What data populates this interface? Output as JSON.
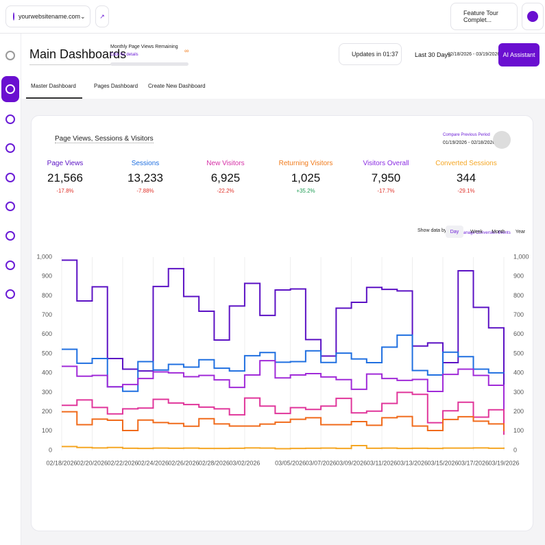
{
  "topbar": {
    "site": "yourwebsitename.com",
    "tour": "Feature Tour Complet..."
  },
  "header": {
    "title": "Main Dashboards",
    "quota_label": "Monthly Page Views Remaining",
    "quota_link": "Click for details",
    "quota_value": "∞",
    "updates": "Updates in 01:37",
    "range_name": "Last 30 Days",
    "range_dates": "02/18/2026 - 03/19/2026",
    "ai_button": "AI Assistant"
  },
  "tabs": [
    "Master Dashboard",
    "Pages Dashboard",
    "Create New Dashboard"
  ],
  "card": {
    "title": "Page Views, Sessions & Visitors",
    "compare_label": "Compare Previous Period",
    "compare_dates": "01/19/2026 - 02/18/2026",
    "conversion_link": "Manage Conversion Events",
    "show_by_label": "Show data by:",
    "show_by": [
      "Day",
      "Week",
      "Month",
      "Year"
    ]
  },
  "metrics": [
    {
      "name": "Page Views",
      "value": "21,566",
      "change": "-17.8%",
      "color": "#5b11c4",
      "change_color": "#e0332b"
    },
    {
      "name": "Sessions",
      "value": "13,233",
      "change": "-7.88%",
      "color": "#1f6fe0",
      "change_color": "#e0332b"
    },
    {
      "name": "New Visitors",
      "value": "6,925",
      "change": "-22.2%",
      "color": "#d62fa6",
      "change_color": "#e0332b"
    },
    {
      "name": "Returning Visitors",
      "value": "1,025",
      "change": "+35.2%",
      "color": "#f07a1a",
      "change_color": "#1f9d55"
    },
    {
      "name": "Visitors Overall",
      "value": "7,950",
      "change": "-17.7%",
      "color": "#8a2be2",
      "change_color": "#e0332b"
    },
    {
      "name": "Converted Sessions",
      "value": "344",
      "change": "-29.1%",
      "color": "#f5a623",
      "change_color": "#e0332b"
    }
  ],
  "chart_data": {
    "type": "line",
    "step": true,
    "grid": true,
    "categories": [
      "02/18/2026",
      null,
      "02/20/2026",
      null,
      "02/22/2026",
      null,
      "02/24/2026",
      null,
      "02/26/2026",
      null,
      "02/28/2026",
      null,
      "03/02/2026",
      null,
      null,
      "03/05/2026",
      null,
      "03/07/2026",
      null,
      "03/09/2026",
      null,
      "03/11/2026",
      null,
      "03/13/2026",
      null,
      "03/15/2026",
      null,
      "03/17/2026",
      null,
      "03/19/2026"
    ],
    "ylim": [
      0,
      1000
    ],
    "yticks": [
      0,
      100,
      200,
      300,
      400,
      500,
      600,
      700,
      800,
      900,
      {
        "value": 1000,
        "label": "1,000"
      }
    ],
    "y2lim": [
      0,
      1000
    ],
    "y2ticks": [
      0,
      100,
      200,
      300,
      400,
      500,
      600,
      700,
      800,
      900,
      {
        "value": 1000,
        "label": "1,000"
      }
    ],
    "series": [
      {
        "name": "Page Views",
        "color": "#5b11c4",
        "values": [
          984,
          773,
          846,
          475,
          420,
          411,
          848,
          940,
          796,
          720,
          571,
          747,
          864,
          698,
          830,
          835,
          573,
          488,
          736,
          766,
          843,
          833,
          825,
          540,
          556,
          454,
          929,
          740,
          634,
          166
        ]
      },
      {
        "name": "Sessions",
        "color": "#1f6fe0",
        "values": [
          523,
          451,
          475,
          329,
          306,
          459,
          416,
          445,
          431,
          469,
          425,
          411,
          490,
          506,
          456,
          459,
          515,
          455,
          503,
          473,
          454,
          534,
          596,
          413,
          390,
          508,
          485,
          420,
          401,
          400
        ]
      },
      {
        "name": "Visitors Overall",
        "color": "#a02ad8",
        "values": [
          435,
          384,
          388,
          329,
          341,
          372,
          406,
          401,
          381,
          388,
          365,
          326,
          390,
          464,
          375,
          390,
          397,
          380,
          366,
          316,
          395,
          372,
          362,
          367,
          305,
          393,
          420,
          388,
          337,
          81
        ]
      },
      {
        "name": "New Visitors",
        "color": "#e0359a",
        "values": [
          233,
          261,
          222,
          189,
          215,
          219,
          264,
          245,
          237,
          224,
          215,
          184,
          271,
          229,
          191,
          221,
          212,
          229,
          269,
          194,
          203,
          243,
          300,
          290,
          143,
          205,
          249,
          172,
          210,
          81
        ]
      },
      {
        "name": "Returning Visitors",
        "color": "#f06a1a",
        "values": [
          200,
          133,
          162,
          156,
          103,
          157,
          144,
          139,
          125,
          164,
          137,
          126,
          126,
          136,
          146,
          161,
          169,
          133,
          133,
          149,
          130,
          169,
          175,
          126,
          103,
          160,
          174,
          151,
          137,
          100
        ]
      },
      {
        "name": "Converted Sessions",
        "color": "#f5a623",
        "values": [
          20,
          15,
          13,
          15,
          11,
          10,
          12,
          11,
          12,
          10,
          10,
          11,
          13,
          12,
          9,
          10,
          11,
          12,
          10,
          25,
          11,
          12,
          10,
          11,
          10,
          12,
          12,
          13,
          11,
          15
        ]
      }
    ]
  }
}
